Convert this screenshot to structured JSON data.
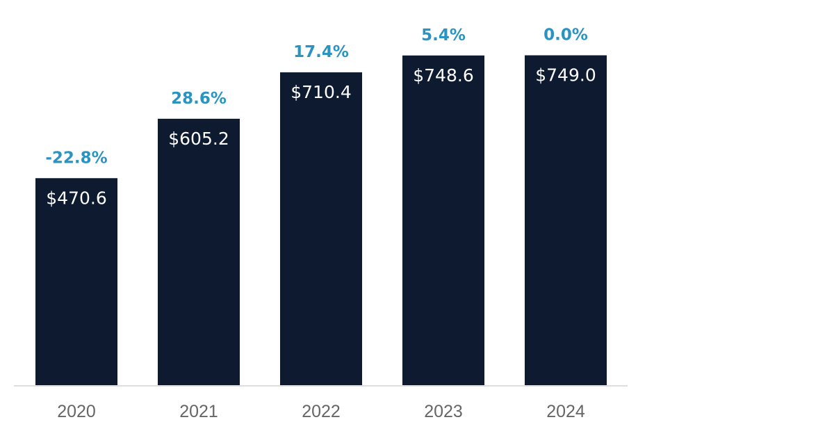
{
  "colors": {
    "bar": "#0d1a30",
    "growth_text": "#2a93c2",
    "axis_text": "#666666",
    "baseline": "#dedede"
  },
  "chart_data": {
    "type": "bar",
    "categories": [
      "2020",
      "2021",
      "2022",
      "2023",
      "2024"
    ],
    "values": [
      470.6,
      605.2,
      710.4,
      748.6,
      749.0
    ],
    "value_labels": [
      "$470.6",
      "$605.2",
      "$710.4",
      "$748.6",
      "$749.0"
    ],
    "growth_labels": [
      "-22.8%",
      "28.6%",
      "17.4%",
      "5.4%",
      "0.0%"
    ],
    "title": "",
    "xlabel": "",
    "ylabel": "",
    "ylim": [
      0,
      800
    ],
    "grid": false,
    "legend": "none"
  }
}
